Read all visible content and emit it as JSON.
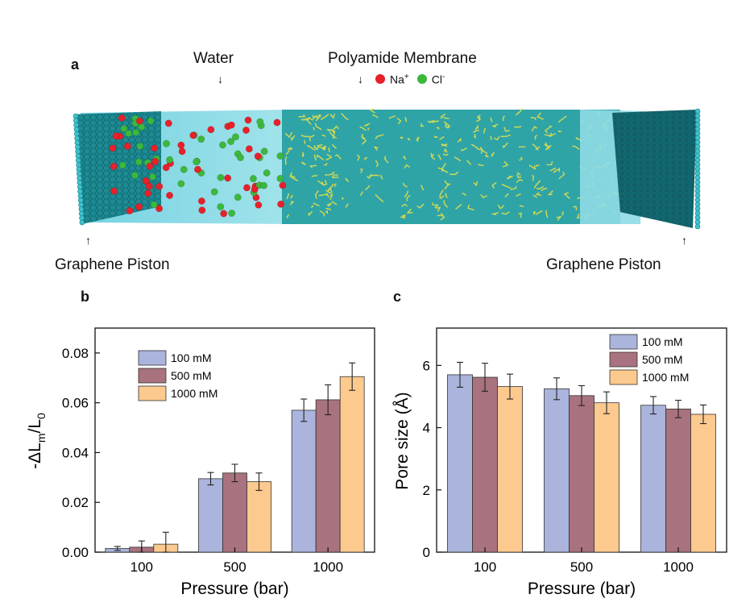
{
  "panel_a": {
    "letter": "a",
    "water_label": "Water",
    "membrane_label": "Polyamide Membrane",
    "left_piston_label": "Graphene Piston",
    "right_piston_label": "Graphene Piston",
    "ion_legend": [
      {
        "name": "Na",
        "charge": "+",
        "color": "#e8202a"
      },
      {
        "name": "Cl",
        "charge": "-",
        "color": "#3cb83c"
      }
    ]
  },
  "chart_data": [
    {
      "panel": "b",
      "type": "bar",
      "categories": [
        "100",
        "500",
        "1000"
      ],
      "xlabel": "Pressure (bar)",
      "ylabel_main": "-ΔL",
      "ylabel_sub1": "m",
      "ylabel_mid": "/L",
      "ylabel_sub2": "0",
      "ylim": [
        0,
        0.09
      ],
      "yticks": [
        0.0,
        0.02,
        0.04,
        0.06,
        0.08
      ],
      "ytick_labels": [
        "0.00",
        "0.02",
        "0.04",
        "0.06",
        "0.08"
      ],
      "legend_position": "top-left",
      "series": [
        {
          "name": "100 mM",
          "color": "#aab4dc",
          "values": [
            0.0015,
            0.0295,
            0.057
          ],
          "errors": [
            0.0008,
            0.0025,
            0.0045
          ]
        },
        {
          "name": "500 mM",
          "color": "#a8727e",
          "values": [
            0.002,
            0.0318,
            0.0612
          ],
          "errors": [
            0.0025,
            0.0035,
            0.006
          ]
        },
        {
          "name": "1000 mM",
          "color": "#fcc98e",
          "values": [
            0.0032,
            0.0283,
            0.0705
          ],
          "errors": [
            0.0048,
            0.0035,
            0.0055
          ]
        }
      ]
    },
    {
      "panel": "c",
      "type": "bar",
      "categories": [
        "100",
        "500",
        "1000"
      ],
      "xlabel": "Pressure (bar)",
      "ylabel": "Pore size (Å)",
      "ylim": [
        0,
        7.2
      ],
      "yticks": [
        0,
        2,
        4,
        6
      ],
      "ytick_labels": [
        "0",
        "2",
        "4",
        "6"
      ],
      "legend_position": "top-right",
      "series": [
        {
          "name": "100 mM",
          "color": "#aab4dc",
          "values": [
            5.7,
            5.25,
            4.72
          ],
          "errors": [
            0.4,
            0.35,
            0.28
          ]
        },
        {
          "name": "500 mM",
          "color": "#a8727e",
          "values": [
            5.62,
            5.03,
            4.6
          ],
          "errors": [
            0.45,
            0.32,
            0.28
          ]
        },
        {
          "name": "1000 mM",
          "color": "#fcc98e",
          "values": [
            5.32,
            4.8,
            4.43
          ],
          "errors": [
            0.4,
            0.35,
            0.3
          ]
        }
      ]
    }
  ]
}
